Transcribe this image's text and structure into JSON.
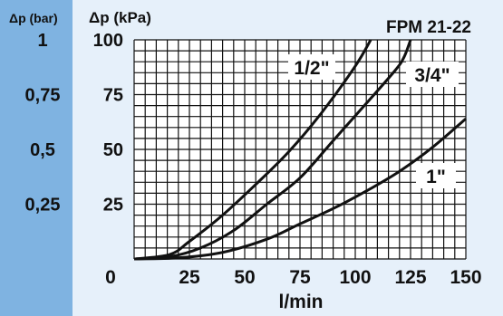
{
  "colors": {
    "background": "#e6f0fa",
    "left_panel": "#7fb3e1",
    "grid": "#111111",
    "curve": "#111111",
    "text": "#111111",
    "label_box": "#ffffff"
  },
  "chart_data": {
    "type": "line",
    "title": "FPM 21-22",
    "xlabel": "l/min",
    "ylabel": "Δp (kPa)",
    "y2label": "Δp (bar)",
    "xlim": [
      0,
      150
    ],
    "ylim": [
      0,
      100
    ],
    "x_ticks": [
      "0",
      "25",
      "50",
      "75",
      "100",
      "125",
      "150"
    ],
    "y_ticks": [
      "25",
      "50",
      "75",
      "100"
    ],
    "y2_ticks": [
      "0,25",
      "0,5",
      "0,75",
      "1"
    ],
    "y2_tick_values": [
      25,
      50,
      75,
      100
    ],
    "grid": true,
    "series": [
      {
        "name": "1/2\"",
        "x": [
          0,
          16,
          25,
          40,
          55,
          70,
          85,
          100,
          107
        ],
        "y": [
          0,
          2,
          8,
          20,
          34,
          49,
          67,
          88,
          100
        ]
      },
      {
        "name": "3/4\"",
        "x": [
          0,
          16,
          30,
          45,
          60,
          75,
          90,
          105,
          118,
          122,
          125
        ],
        "y": [
          0,
          1,
          5,
          13,
          25,
          37,
          54,
          71,
          86,
          92,
          100
        ]
      },
      {
        "name": "1\"",
        "x": [
          0,
          20,
          40,
          60,
          75,
          90,
          105,
          120,
          135,
          150
        ],
        "y": [
          0,
          0.5,
          3,
          9,
          16,
          23,
          31,
          40,
          51,
          64
        ]
      }
    ]
  }
}
